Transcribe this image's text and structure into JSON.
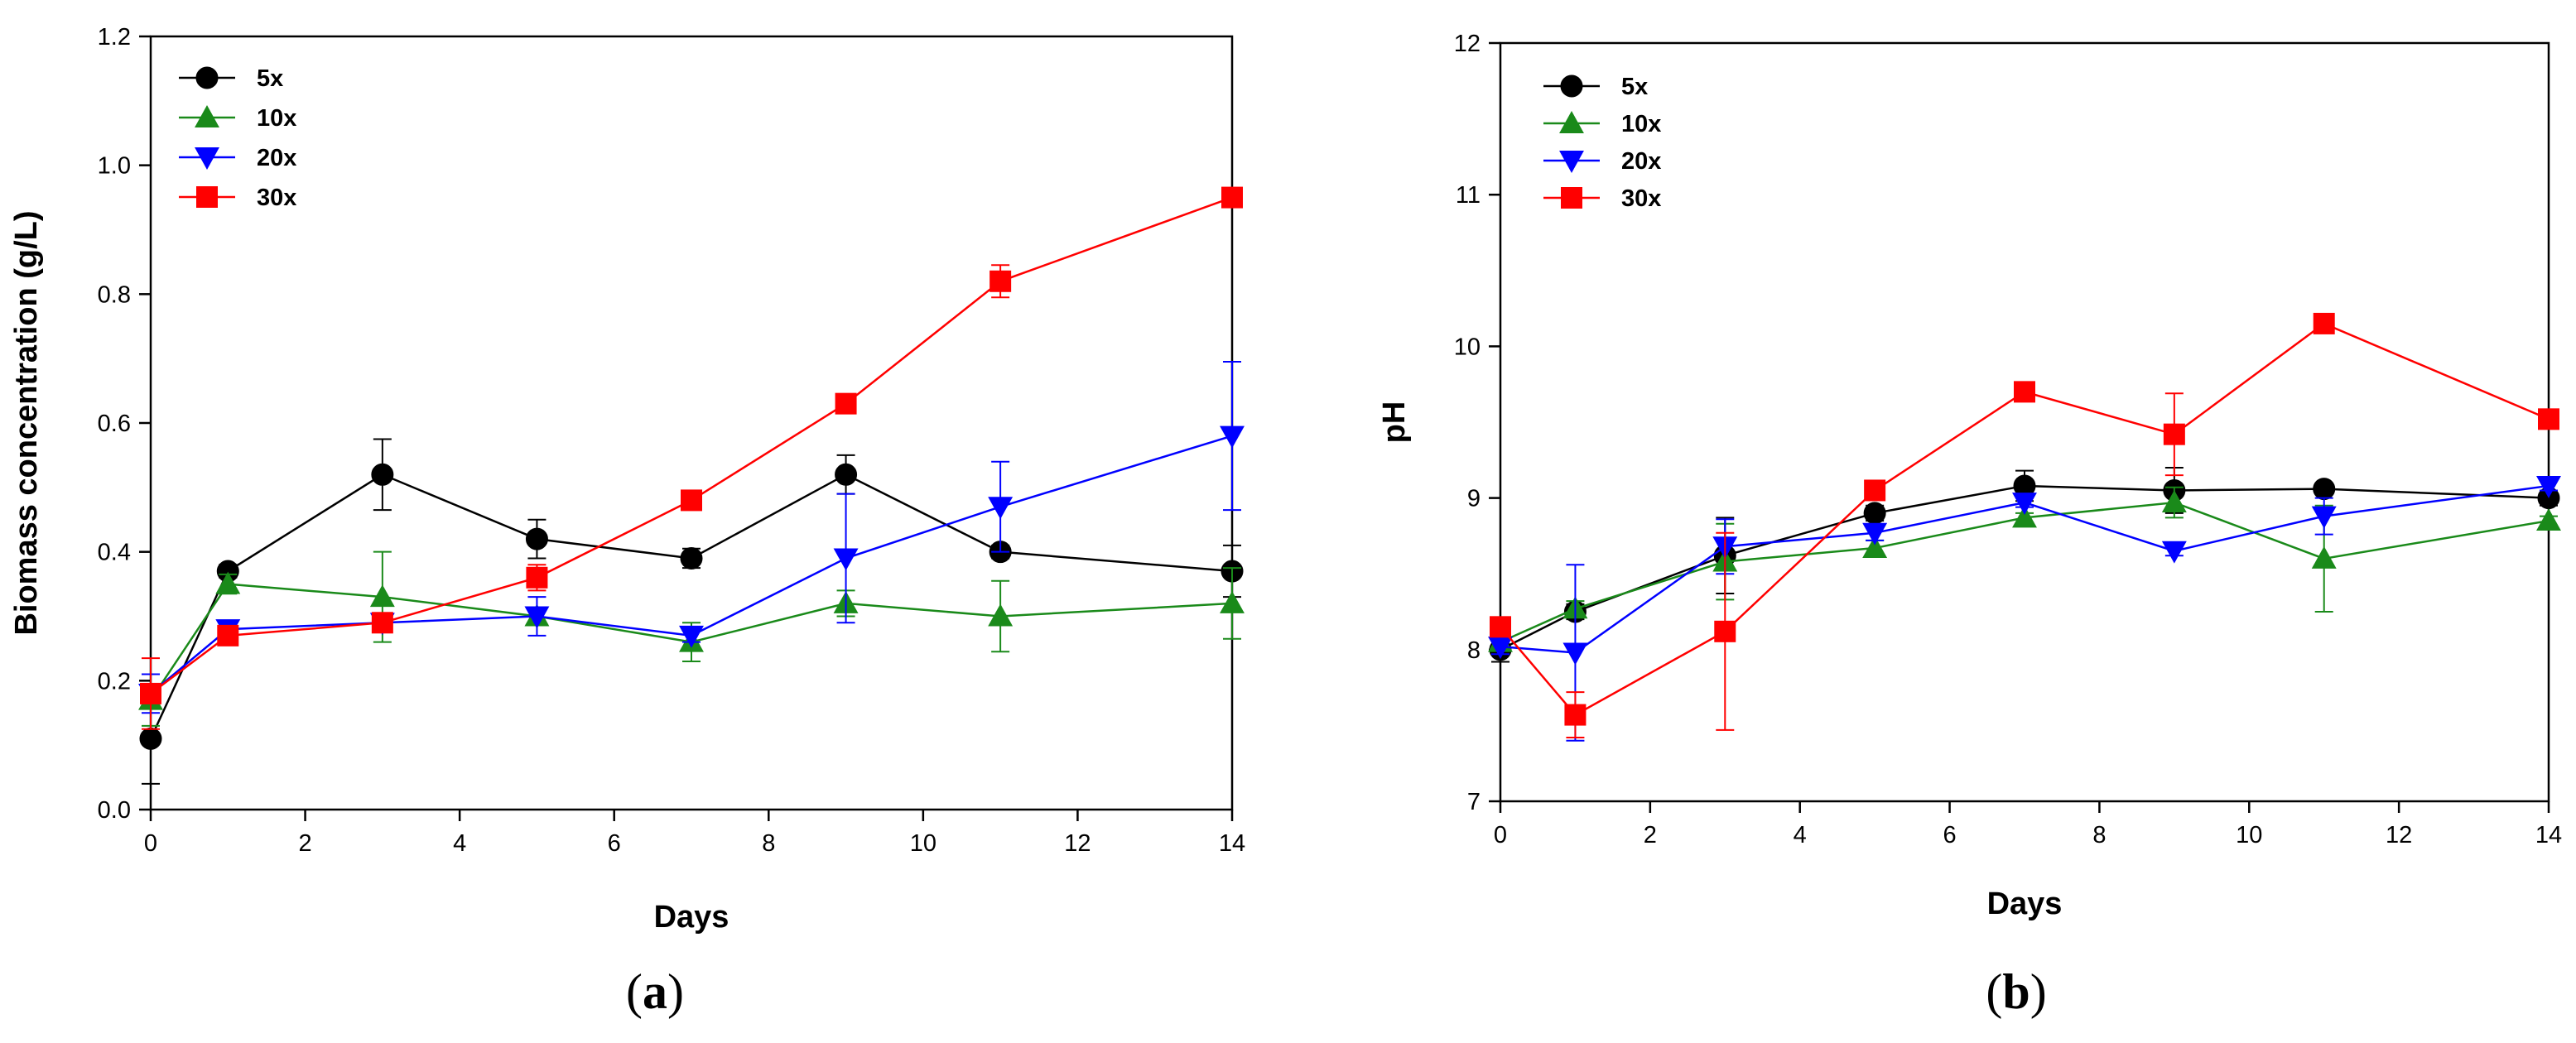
{
  "chart_data": [
    {
      "type": "line",
      "panel_label": "a",
      "xlabel": "Days",
      "ylabel": "Biomass concentration (g/L)",
      "xlim": [
        0,
        14
      ],
      "ylim": [
        0,
        1.2
      ],
      "xticks": [
        0,
        2,
        4,
        6,
        8,
        10,
        12,
        14
      ],
      "yticks": [
        0.0,
        0.2,
        0.4,
        0.6,
        0.8,
        1.0,
        1.2
      ],
      "ytick_labels": [
        "0.0",
        "0.2",
        "0.4",
        "0.6",
        "0.8",
        "1.0",
        "1.2"
      ],
      "legend_position": "top-left",
      "x": [
        0,
        1,
        3,
        5,
        7,
        9,
        11,
        14
      ],
      "series": [
        {
          "name": "5x",
          "color": "#000000",
          "marker": "circle",
          "values": [
            0.11,
            0.37,
            0.52,
            0.42,
            0.39,
            0.52,
            0.4,
            0.37
          ],
          "errors": [
            0.07,
            0.01,
            0.055,
            0.03,
            0.015,
            0.03,
            0.01,
            0.04
          ]
        },
        {
          "name": "10x",
          "color": "#1a8a1a",
          "marker": "triangle-up",
          "values": [
            0.17,
            0.35,
            0.33,
            0.3,
            0.26,
            0.32,
            0.3,
            0.32
          ],
          "errors": [
            0.04,
            0.015,
            0.07,
            0.01,
            0.03,
            0.02,
            0.055,
            0.055
          ]
        },
        {
          "name": "20x",
          "color": "#0000ff",
          "marker": "triangle-down",
          "values": [
            0.18,
            0.28,
            0.29,
            0.3,
            0.27,
            0.39,
            0.47,
            0.58
          ],
          "errors": [
            0.03,
            0.01,
            0.01,
            0.03,
            0.01,
            0.1,
            0.07,
            0.115
          ]
        },
        {
          "name": "30x",
          "color": "#ff0000",
          "marker": "square",
          "values": [
            0.18,
            0.27,
            0.29,
            0.36,
            0.48,
            0.63,
            0.82,
            0.95
          ],
          "errors": [
            0.055,
            0.01,
            0.01,
            0.02,
            0.01,
            0.01,
            0.025,
            0.01
          ]
        }
      ]
    },
    {
      "type": "line",
      "panel_label": "b",
      "xlabel": "Days",
      "ylabel": "pH",
      "xlim": [
        0,
        14
      ],
      "ylim": [
        7,
        12
      ],
      "xticks": [
        0,
        2,
        4,
        6,
        8,
        10,
        12,
        14
      ],
      "yticks": [
        7,
        8,
        9,
        10,
        11,
        12
      ],
      "ytick_labels": [
        "7",
        "8",
        "9",
        "10",
        "11",
        "12"
      ],
      "legend_position": "top-left",
      "x": [
        0,
        1,
        3,
        5,
        7,
        9,
        11,
        14
      ],
      "series": [
        {
          "name": "5x",
          "color": "#000000",
          "marker": "circle",
          "values": [
            8.0,
            8.25,
            8.62,
            8.9,
            9.08,
            9.05,
            9.06,
            9.0
          ],
          "errors": [
            0.08,
            0.05,
            0.25,
            0.05,
            0.1,
            0.15,
            0.03,
            0.05
          ]
        },
        {
          "name": "10x",
          "color": "#1a8a1a",
          "marker": "triangle-up",
          "values": [
            8.05,
            8.27,
            8.58,
            8.67,
            8.87,
            8.97,
            8.6,
            8.85
          ],
          "errors": [
            0.05,
            0.05,
            0.25,
            0.05,
            0.03,
            0.1,
            0.35,
            0.03
          ]
        },
        {
          "name": "20x",
          "color": "#0000ff",
          "marker": "triangle-down",
          "values": [
            8.02,
            7.98,
            8.68,
            8.77,
            8.97,
            8.65,
            8.88,
            9.08
          ],
          "errors": [
            0.05,
            0.58,
            0.18,
            0.05,
            0.03,
            0.03,
            0.12,
            0.03
          ]
        },
        {
          "name": "30x",
          "color": "#ff0000",
          "marker": "square",
          "values": [
            8.15,
            7.57,
            8.12,
            9.05,
            9.7,
            9.42,
            10.15,
            9.52
          ],
          "errors": [
            0.03,
            0.15,
            0.65,
            0.03,
            0.03,
            0.27,
            0.03,
            0.03
          ]
        }
      ]
    }
  ]
}
